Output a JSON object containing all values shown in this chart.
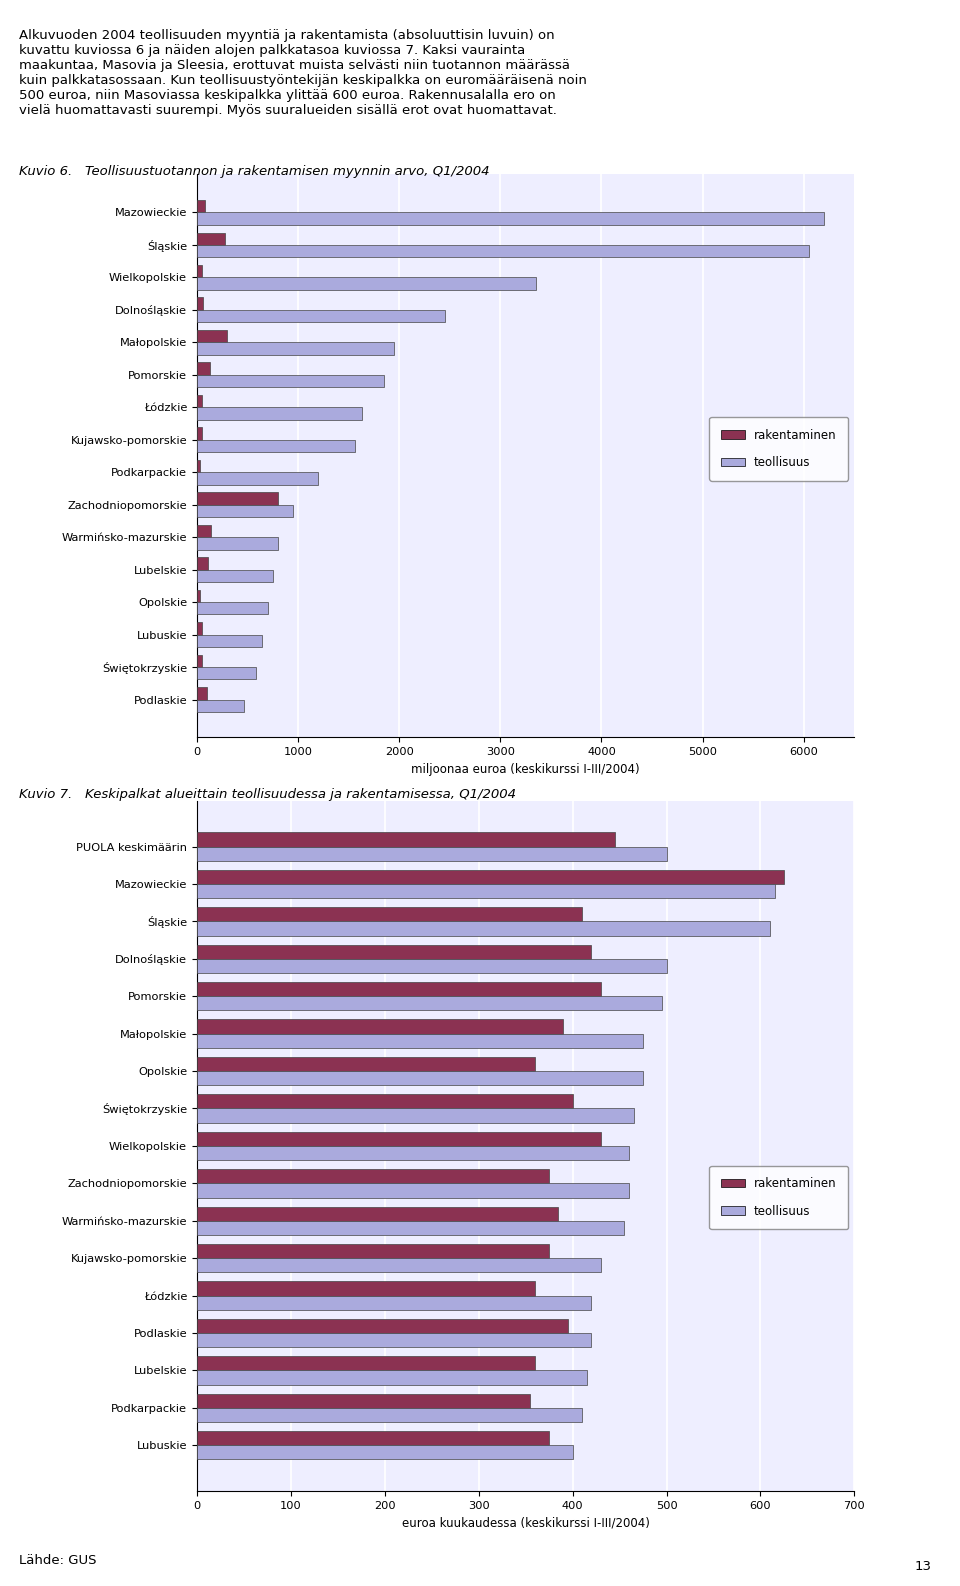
{
  "chart1": {
    "title": "Kuvio 6.   Teollisuustuotannon ja rakentamisen myynnin arvo, Q1/2004",
    "categories": [
      "Mazowieckie",
      "Śląskie",
      "Wielkopolskie",
      "Dolnośląskie",
      "Małopolskie",
      "Pomorskie",
      "Łódzkie",
      "Kujawsko-pomorskie",
      "Podkarpackie",
      "Zachodniopomorskie",
      "Warmińsko-mazurskie",
      "Lubelskie",
      "Opolskie",
      "Lubuskie",
      "Świętokrzyskie",
      "Podlaskie"
    ],
    "rakentaminen": [
      80,
      280,
      50,
      60,
      300,
      130,
      50,
      50,
      30,
      800,
      140,
      110,
      30,
      50,
      50,
      100
    ],
    "teollisuus": [
      6200,
      6050,
      3350,
      2450,
      1950,
      1850,
      1630,
      1560,
      1200,
      950,
      800,
      750,
      700,
      640,
      590,
      470
    ],
    "xlabel": "miljoonaa euroa (keskikurssi I-III/2004)",
    "xlim": [
      0,
      6500
    ],
    "xticks": [
      0,
      1000,
      2000,
      3000,
      4000,
      5000,
      6000
    ]
  },
  "chart2": {
    "title": "Kuvio 7.   Keskipalkat alueittain teollisuudessa ja rakentamisessa, Q1/2004",
    "categories": [
      "PUOLA keskimäärin",
      "Mazowieckie",
      "Śląskie",
      "Dolnośląskie",
      "Pomorskie",
      "Małopolskie",
      "Opolskie",
      "Świętokrzyskie",
      "Wielkopolskie",
      "Zachodniopomorskie",
      "Warmińsko-mazurskie",
      "Kujawsko-pomorskie",
      "Łódzkie",
      "Podlaskie",
      "Lubelskie",
      "Podkarpackie",
      "Lubuskie"
    ],
    "rakentaminen": [
      445,
      625,
      410,
      420,
      430,
      390,
      360,
      400,
      430,
      375,
      385,
      375,
      360,
      395,
      360,
      355,
      375
    ],
    "teollisuus": [
      500,
      615,
      610,
      500,
      495,
      475,
      475,
      465,
      460,
      460,
      455,
      430,
      420,
      420,
      415,
      410,
      400
    ],
    "xlabel": "euroa kuukaudessa (keskikurssi I-III/2004)",
    "xlim": [
      0,
      700
    ],
    "xticks": [
      0,
      100,
      200,
      300,
      400,
      500,
      600,
      700
    ]
  },
  "color_rakentaminen": "#8B3252",
  "color_teollisuus": "#AAAADD",
  "background_color": "#EEEEFF",
  "footer": "Lähde: GUS"
}
